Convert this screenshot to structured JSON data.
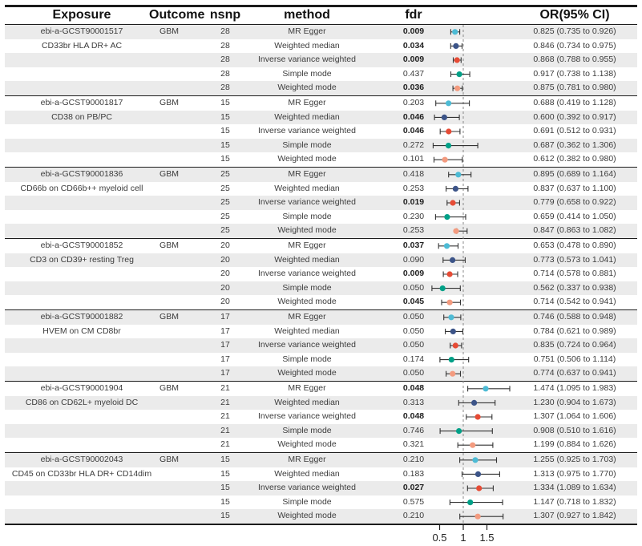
{
  "header": {
    "exposure": "Exposure",
    "outcome": "Outcome",
    "nsnp": "nsnp",
    "method": "method",
    "fdr": "fdr",
    "or_ci": "OR(95% CI)"
  },
  "chart_data": {
    "type": "scatter",
    "subtype": "forest-plot",
    "x_axis": {
      "ticks": [
        0.5,
        1,
        1.5
      ],
      "tick_labels": [
        "0.5",
        "1",
        "1.5"
      ],
      "reference_line": 1,
      "range": [
        0.3,
        2.05
      ]
    },
    "legend_position": "none",
    "grid": false,
    "palette": [
      "#4DBBD5",
      "#3C5488",
      "#E64B35",
      "#00A087",
      "#F39B7F"
    ],
    "methods": [
      "MR Egger",
      "Weighted median",
      "Inverse variance weighted",
      "Simple mode",
      "Weighted mode"
    ],
    "groups": [
      {
        "exposure_id": "ebi-a-GCST90001517",
        "exposure_trait": "CD33br HLA DR+ AC",
        "outcome": "GBM",
        "nsnp": "28",
        "rows": [
          {
            "method": "MR Egger",
            "fdr": "0.009",
            "significant": true,
            "or": 0.825,
            "ci_low": 0.735,
            "ci_high": 0.926,
            "or_ci_label": "0.825 (0.735 to 0.926)"
          },
          {
            "method": "Weighted median",
            "fdr": "0.034",
            "significant": true,
            "or": 0.846,
            "ci_low": 0.734,
            "ci_high": 0.975,
            "or_ci_label": "0.846 (0.734 to 0.975)"
          },
          {
            "method": "Inverse variance weighted",
            "fdr": "0.009",
            "significant": true,
            "or": 0.868,
            "ci_low": 0.788,
            "ci_high": 0.955,
            "or_ci_label": "0.868 (0.788 to 0.955)"
          },
          {
            "method": "Simple mode",
            "fdr": "0.437",
            "significant": false,
            "or": 0.917,
            "ci_low": 0.738,
            "ci_high": 1.138,
            "or_ci_label": "0.917 (0.738 to 1.138)"
          },
          {
            "method": "Weighted mode",
            "fdr": "0.036",
            "significant": true,
            "or": 0.875,
            "ci_low": 0.781,
            "ci_high": 0.98,
            "or_ci_label": "0.875 (0.781 to 0.980)"
          }
        ]
      },
      {
        "exposure_id": "ebi-a-GCST90001817",
        "exposure_trait": "CD38 on PB/PC",
        "outcome": "GBM",
        "nsnp": "15",
        "rows": [
          {
            "method": "MR Egger",
            "fdr": "0.203",
            "significant": false,
            "or": 0.688,
            "ci_low": 0.419,
            "ci_high": 1.128,
            "or_ci_label": "0.688 (0.419 to 1.128)"
          },
          {
            "method": "Weighted median",
            "fdr": "0.046",
            "significant": true,
            "or": 0.6,
            "ci_low": 0.392,
            "ci_high": 0.917,
            "or_ci_label": "0.600 (0.392 to 0.917)"
          },
          {
            "method": "Inverse variance weighted",
            "fdr": "0.046",
            "significant": true,
            "or": 0.691,
            "ci_low": 0.512,
            "ci_high": 0.931,
            "or_ci_label": "0.691 (0.512 to 0.931)"
          },
          {
            "method": "Simple mode",
            "fdr": "0.272",
            "significant": false,
            "or": 0.687,
            "ci_low": 0.362,
            "ci_high": 1.306,
            "or_ci_label": "0.687 (0.362 to 1.306)"
          },
          {
            "method": "Weighted mode",
            "fdr": "0.101",
            "significant": false,
            "or": 0.612,
            "ci_low": 0.382,
            "ci_high": 0.98,
            "or_ci_label": "0.612 (0.382 to 0.980)"
          }
        ]
      },
      {
        "exposure_id": "ebi-a-GCST90001836",
        "exposure_trait": "CD66b on CD66b++ myeloid cell",
        "outcome": "GBM",
        "nsnp": "25",
        "rows": [
          {
            "method": "MR Egger",
            "fdr": "0.418",
            "significant": false,
            "or": 0.895,
            "ci_low": 0.689,
            "ci_high": 1.164,
            "or_ci_label": "0.895 (0.689 to 1.164)"
          },
          {
            "method": "Weighted median",
            "fdr": "0.253",
            "significant": false,
            "or": 0.837,
            "ci_low": 0.637,
            "ci_high": 1.1,
            "or_ci_label": "0.837 (0.637 to 1.100)"
          },
          {
            "method": "Inverse variance weighted",
            "fdr": "0.019",
            "significant": true,
            "or": 0.779,
            "ci_low": 0.658,
            "ci_high": 0.922,
            "or_ci_label": "0.779 (0.658 to 0.922)"
          },
          {
            "method": "Simple mode",
            "fdr": "0.230",
            "significant": false,
            "or": 0.659,
            "ci_low": 0.414,
            "ci_high": 1.05,
            "or_ci_label": "0.659 (0.414 to 1.050)"
          },
          {
            "method": "Weighted mode",
            "fdr": "0.253",
            "significant": false,
            "or": 0.847,
            "ci_low": 0.863,
            "ci_high": 1.082,
            "or_ci_label": "0.847 (0.863 to 1.082)"
          }
        ]
      },
      {
        "exposure_id": "ebi-a-GCST90001852",
        "exposure_trait": "CD3 on CD39+ resting Treg",
        "outcome": "GBM",
        "nsnp": "20",
        "rows": [
          {
            "method": "MR Egger",
            "fdr": "0.037",
            "significant": true,
            "or": 0.653,
            "ci_low": 0.478,
            "ci_high": 0.89,
            "or_ci_label": "0.653 (0.478 to 0.890)"
          },
          {
            "method": "Weighted median",
            "fdr": "0.090",
            "significant": false,
            "or": 0.773,
            "ci_low": 0.573,
            "ci_high": 1.041,
            "or_ci_label": "0.773 (0.573 to 1.041)"
          },
          {
            "method": "Inverse variance weighted",
            "fdr": "0.009",
            "significant": true,
            "or": 0.714,
            "ci_low": 0.578,
            "ci_high": 0.881,
            "or_ci_label": "0.714 (0.578 to 0.881)"
          },
          {
            "method": "Simple mode",
            "fdr": "0.050",
            "significant": false,
            "or": 0.562,
            "ci_low": 0.337,
            "ci_high": 0.938,
            "or_ci_label": "0.562 (0.337 to 0.938)"
          },
          {
            "method": "Weighted mode",
            "fdr": "0.045",
            "significant": true,
            "or": 0.714,
            "ci_low": 0.542,
            "ci_high": 0.941,
            "or_ci_label": "0.714 (0.542 to 0.941)"
          }
        ]
      },
      {
        "exposure_id": "ebi-a-GCST90001882",
        "exposure_trait": "HVEM on CM CD8br",
        "outcome": "GBM",
        "nsnp": "17",
        "rows": [
          {
            "method": "MR Egger",
            "fdr": "0.050",
            "significant": false,
            "or": 0.746,
            "ci_low": 0.588,
            "ci_high": 0.948,
            "or_ci_label": "0.746 (0.588 to 0.948)"
          },
          {
            "method": "Weighted median",
            "fdr": "0.050",
            "significant": false,
            "or": 0.784,
            "ci_low": 0.621,
            "ci_high": 0.989,
            "or_ci_label": "0.784 (0.621 to 0.989)"
          },
          {
            "method": "Inverse variance weighted",
            "fdr": "0.050",
            "significant": false,
            "or": 0.835,
            "ci_low": 0.724,
            "ci_high": 0.964,
            "or_ci_label": "0.835 (0.724 to 0.964)"
          },
          {
            "method": "Simple mode",
            "fdr": "0.174",
            "significant": false,
            "or": 0.751,
            "ci_low": 0.506,
            "ci_high": 1.114,
            "or_ci_label": "0.751 (0.506 to 1.114)"
          },
          {
            "method": "Weighted mode",
            "fdr": "0.050",
            "significant": false,
            "or": 0.774,
            "ci_low": 0.637,
            "ci_high": 0.941,
            "or_ci_label": "0.774 (0.637 to 0.941)"
          }
        ]
      },
      {
        "exposure_id": "ebi-a-GCST90001904",
        "exposure_trait": "CD86 on CD62L+ myeloid DC",
        "outcome": "GBM",
        "nsnp": "21",
        "rows": [
          {
            "method": "MR Egger",
            "fdr": "0.048",
            "significant": true,
            "or": 1.474,
            "ci_low": 1.095,
            "ci_high": 1.983,
            "or_ci_label": "1.474 (1.095 to 1.983)"
          },
          {
            "method": "Weighted median",
            "fdr": "0.313",
            "significant": false,
            "or": 1.23,
            "ci_low": 0.904,
            "ci_high": 1.673,
            "or_ci_label": "1.230 (0.904 to 1.673)"
          },
          {
            "method": "Inverse variance weighted",
            "fdr": "0.048",
            "significant": true,
            "or": 1.307,
            "ci_low": 1.064,
            "ci_high": 1.606,
            "or_ci_label": "1.307 (1.064 to 1.606)"
          },
          {
            "method": "Simple mode",
            "fdr": "0.746",
            "significant": false,
            "or": 0.908,
            "ci_low": 0.51,
            "ci_high": 1.616,
            "or_ci_label": "0.908 (0.510 to 1.616)"
          },
          {
            "method": "Weighted mode",
            "fdr": "0.321",
            "significant": false,
            "or": 1.199,
            "ci_low": 0.884,
            "ci_high": 1.626,
            "or_ci_label": "1.199 (0.884 to 1.626)"
          }
        ]
      },
      {
        "exposure_id": "ebi-a-GCST90002043",
        "exposure_trait": "CD45 on CD33br HLA DR+ CD14dim",
        "outcome": "GBM",
        "nsnp": "15",
        "rows": [
          {
            "method": "MR Egger",
            "fdr": "0.210",
            "significant": false,
            "or": 1.255,
            "ci_low": 0.925,
            "ci_high": 1.703,
            "or_ci_label": "1.255 (0.925 to 1.703)"
          },
          {
            "method": "Weighted median",
            "fdr": "0.183",
            "significant": false,
            "or": 1.313,
            "ci_low": 0.975,
            "ci_high": 1.77,
            "or_ci_label": "1.313 (0.975 to 1.770)"
          },
          {
            "method": "Inverse variance weighted",
            "fdr": "0.027",
            "significant": true,
            "or": 1.334,
            "ci_low": 1.089,
            "ci_high": 1.634,
            "or_ci_label": "1.334 (1.089 to 1.634)"
          },
          {
            "method": "Simple mode",
            "fdr": "0.575",
            "significant": false,
            "or": 1.147,
            "ci_low": 0.718,
            "ci_high": 1.832,
            "or_ci_label": "1.147 (0.718 to 1.832)"
          },
          {
            "method": "Weighted mode",
            "fdr": "0.210",
            "significant": false,
            "or": 1.307,
            "ci_low": 0.927,
            "ci_high": 1.842,
            "or_ci_label": "1.307 (0.927 to 1.842)"
          }
        ]
      }
    ]
  }
}
